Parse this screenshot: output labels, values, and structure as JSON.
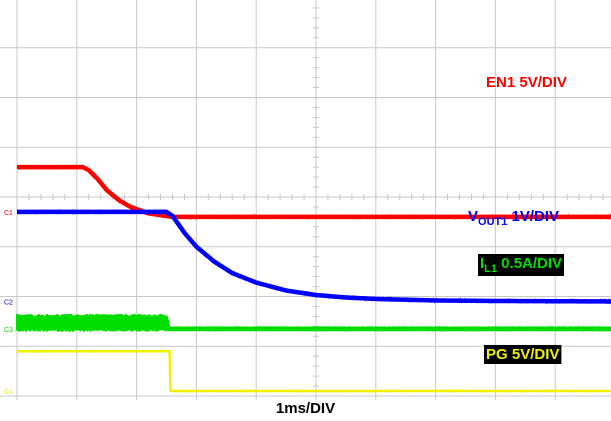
{
  "chart_data": {
    "type": "line",
    "title": "",
    "xlabel": "1ms/DIV",
    "ylabel": "",
    "grid": true,
    "divisions": {
      "x": 10,
      "y": 8
    },
    "x_unit": "ms",
    "xlim": [
      0,
      10
    ],
    "series": [
      {
        "key": "en1",
        "label_main": "EN1",
        "label_sub": "",
        "label_scale": "5V/DIV",
        "color": "#ff0000",
        "marker": "C1",
        "baseline_div": 3.6,
        "x": [
          0,
          1.1,
          1.2,
          1.35,
          1.5,
          1.7,
          1.9,
          2.2,
          2.6,
          10
        ],
        "y": [
          5.0,
          5.0,
          4.7,
          3.8,
          2.7,
          1.7,
          1.0,
          0.35,
          0.0,
          0.0
        ]
      },
      {
        "key": "vout1",
        "label_main": "V",
        "label_sub": "OUT1",
        "label_scale": "1V/DIV",
        "color": "#0000ff",
        "marker": "C2",
        "baseline_div": 1.9,
        "x": [
          0,
          2.5,
          2.6,
          2.8,
          3.0,
          3.3,
          3.6,
          4.0,
          4.5,
          5.0,
          5.5,
          6.0,
          7.0,
          8.0,
          10
        ],
        "y": [
          1.8,
          1.8,
          1.72,
          1.38,
          1.1,
          0.8,
          0.57,
          0.38,
          0.22,
          0.13,
          0.08,
          0.05,
          0.02,
          0.01,
          0.0
        ]
      },
      {
        "key": "il1",
        "label_main": "I",
        "label_sub": "L1",
        "label_scale": "0.5A/DIV",
        "color": "#00dd00",
        "marker": "C3",
        "baseline_div": 1.35,
        "x": [
          0,
          2.5,
          2.55,
          10
        ],
        "y": [
          0.06,
          0.06,
          0.0,
          0.0
        ],
        "ripple": [
          0.07,
          0.07,
          0.014,
          0.014
        ]
      },
      {
        "key": "pg",
        "label_main": "PG",
        "label_sub": "",
        "label_scale": "5V/DIV",
        "color": "#f0f000",
        "marker": "C4",
        "baseline_div": 0.1,
        "x": [
          0,
          2.55,
          2.56,
          10
        ],
        "y": [
          4.0,
          4.0,
          0.0,
          0.0
        ]
      }
    ]
  },
  "colors": {
    "grid": "#c8c8c8",
    "background": "#ffffff",
    "label_box_bg": "#000000"
  }
}
